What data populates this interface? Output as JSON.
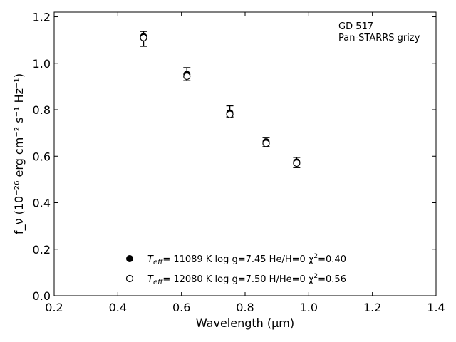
{
  "chart_data": {
    "type": "scatter",
    "xlabel": "Wavelength (μm)",
    "ylabel": "f_ν (10⁻²⁶ erg cm⁻² s⁻¹ Hz⁻¹)",
    "xlim": [
      0.2,
      1.4
    ],
    "ylim": [
      0.0,
      1.22
    ],
    "x_ticks": [
      "0.2",
      "0.4",
      "0.6",
      "0.8",
      "1.0",
      "1.2",
      "1.4"
    ],
    "y_ticks": [
      "0.0",
      "0.2",
      "0.4",
      "0.6",
      "0.8",
      "1.0",
      "1.2"
    ],
    "grid": false,
    "annotation": [
      "GD 517",
      "Pan-STARRS grizy"
    ],
    "legend_position": "lower-center",
    "observed": {
      "x": [
        0.481,
        0.617,
        0.752,
        0.866,
        0.962
      ],
      "y": [
        1.105,
        0.953,
        0.793,
        0.661,
        0.573
      ],
      "err": [
        0.032,
        0.028,
        0.024,
        0.02,
        0.022
      ]
    },
    "series": [
      {
        "name": "T_eff= 11089 K  log g=7.45  He/H=0  χ²=0.40",
        "label_prefix": "T",
        "label_sub": "eff",
        "label_suffix": "= 11089 K  log g=7.45  He/H=0  χ",
        "label_sup": "2",
        "label_end": "=0.40",
        "marker": "filled",
        "x": [
          0.481,
          0.617,
          0.752,
          0.866,
          0.962
        ],
        "y": [
          1.115,
          0.952,
          0.786,
          0.662,
          0.575
        ]
      },
      {
        "name": "T_eff= 12080 K  log g=7.50  H/He=0  χ²=0.56",
        "label_prefix": "T",
        "label_sub": "eff",
        "label_suffix": "= 12080 K  log g=7.50  H/He=0  χ",
        "label_sup": "2",
        "label_end": "=0.56",
        "marker": "open",
        "x": [
          0.481,
          0.617,
          0.752,
          0.866,
          0.962
        ],
        "y": [
          1.11,
          0.944,
          0.78,
          0.655,
          0.57
        ]
      }
    ]
  }
}
